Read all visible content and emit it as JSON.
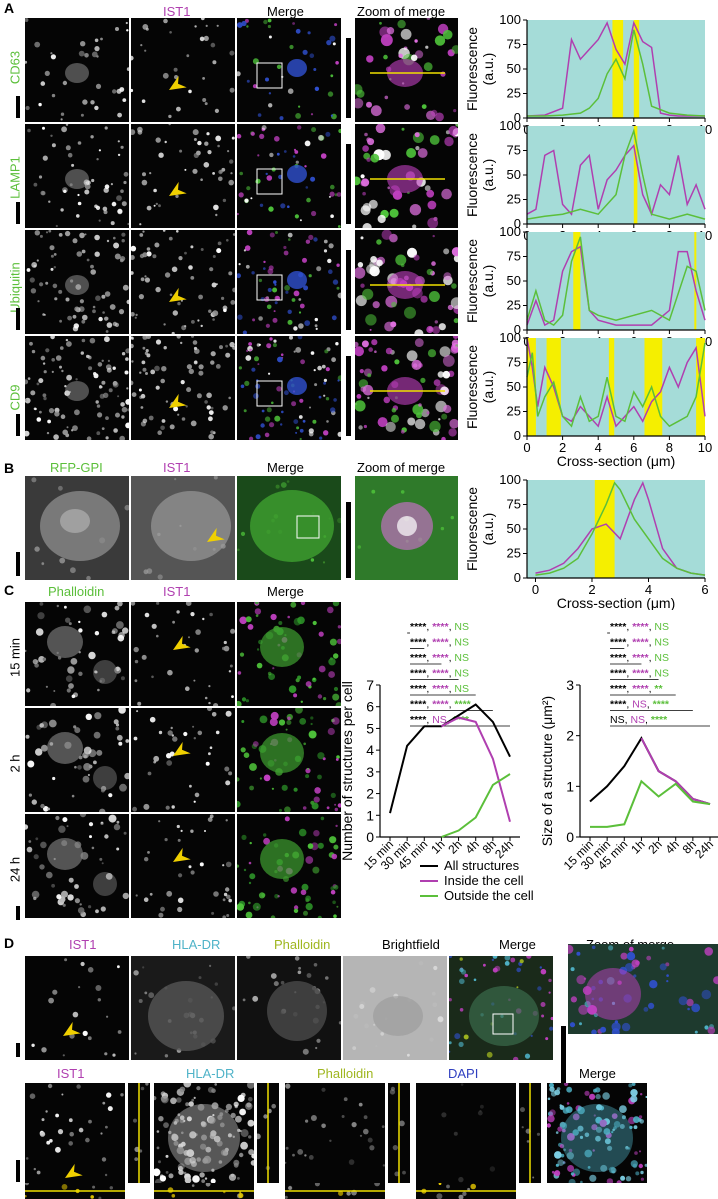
{
  "panels": {
    "A": {
      "letter": "A",
      "col_headers": [
        "IST1",
        "Merge",
        "Zoom of merge"
      ],
      "rows": [
        "CD63",
        "LAMP1",
        "Ubiquitin",
        "CD9"
      ]
    },
    "B": {
      "letter": "B",
      "col_headers": [
        "RFP-GPI",
        "IST1",
        "Merge",
        "Zoom of merge"
      ]
    },
    "C": {
      "letter": "C",
      "col_headers": [
        "Phalloidin",
        "IST1",
        "Merge"
      ],
      "rows": [
        "15 min",
        "2 h",
        "24 h"
      ]
    },
    "D": {
      "letter": "D",
      "top_headers": [
        "IST1",
        "HLA-DR",
        "Phalloidin",
        "Brightfield",
        "Merge",
        "Zoom of merge"
      ],
      "bottom_headers": [
        "IST1",
        "HLA-DR",
        "Phalloidin",
        "DAPI",
        "Merge"
      ]
    }
  },
  "profile_axes": {
    "ylabel_line1": "Fluorescence",
    "ylabel_line2": "(a.u.)",
    "xlabel": "Cross-section (μm)",
    "yticks": [
      "0",
      "25",
      "50",
      "75",
      "100"
    ],
    "xticks_A": [
      "0",
      "2",
      "4",
      "6",
      "8",
      "10"
    ],
    "xticks_B": [
      "0",
      "2",
      "4",
      "6"
    ]
  },
  "chart_data": [
    {
      "type": "line",
      "panel": "A-CD63",
      "xlim": [
        0,
        10
      ],
      "ylim": [
        0,
        100
      ],
      "highlight_regions": [
        [
          4.8,
          5.4
        ],
        [
          6.0,
          6.3
        ]
      ],
      "series": [
        {
          "color": "#b03fb0",
          "x": [
            0,
            1,
            2,
            2.5,
            3,
            3.5,
            4,
            4.5,
            5,
            5.5,
            6,
            6.5,
            7,
            7.5,
            8,
            8.5,
            9,
            9.5,
            10
          ],
          "values": [
            2,
            3,
            10,
            80,
            60,
            70,
            80,
            97,
            70,
            55,
            97,
            78,
            72,
            5,
            3,
            2,
            2,
            2,
            2
          ]
        },
        {
          "color": "#5bbf3a",
          "x": [
            0,
            1,
            2,
            3,
            3.5,
            4,
            4.5,
            5,
            5.5,
            6,
            6.5,
            7,
            8,
            9,
            10
          ],
          "values": [
            2,
            2,
            3,
            5,
            10,
            20,
            45,
            60,
            40,
            90,
            55,
            12,
            5,
            3,
            2
          ]
        }
      ]
    },
    {
      "type": "line",
      "panel": "A-LAMP1",
      "xlim": [
        0,
        10
      ],
      "ylim": [
        0,
        100
      ],
      "highlight_regions": [
        [
          6.0,
          6.2
        ]
      ],
      "series": [
        {
          "color": "#b03fb0",
          "x": [
            0,
            0.5,
            1,
            1.5,
            2,
            2.5,
            3,
            3.5,
            4,
            4.5,
            5,
            5.5,
            6,
            6.5,
            7,
            7.5,
            8,
            8.5,
            9,
            9.5,
            10
          ],
          "values": [
            10,
            15,
            70,
            75,
            20,
            10,
            60,
            70,
            15,
            45,
            55,
            70,
            80,
            30,
            10,
            40,
            30,
            70,
            20,
            40,
            15
          ]
        },
        {
          "color": "#5bbf3a",
          "x": [
            0,
            1,
            2,
            3,
            4,
            5,
            5.5,
            6,
            6.5,
            7,
            8,
            9,
            10
          ],
          "values": [
            5,
            8,
            10,
            15,
            10,
            30,
            70,
            95,
            50,
            10,
            5,
            10,
            5
          ]
        }
      ]
    },
    {
      "type": "line",
      "panel": "A-Ubiquitin",
      "xlim": [
        0,
        10
      ],
      "ylim": [
        0,
        100
      ],
      "highlight_regions": [
        [
          2.6,
          3.0
        ],
        [
          9.4,
          9.5
        ]
      ],
      "series": [
        {
          "color": "#b03fb0",
          "x": [
            0,
            0.5,
            1,
            1.5,
            2,
            2.5,
            3,
            3.5,
            4,
            5,
            6,
            7,
            8,
            8.5,
            9,
            9.5,
            10
          ],
          "values": [
            5,
            30,
            5,
            10,
            60,
            80,
            85,
            20,
            10,
            5,
            5,
            5,
            20,
            80,
            80,
            40,
            10
          ]
        },
        {
          "color": "#5bbf3a",
          "x": [
            0,
            0.5,
            1,
            1.5,
            2,
            2.5,
            3,
            3.5,
            4,
            5,
            6,
            7,
            8,
            9,
            9.5,
            10
          ],
          "values": [
            10,
            40,
            10,
            5,
            15,
            70,
            95,
            20,
            15,
            10,
            15,
            20,
            10,
            65,
            60,
            20
          ]
        }
      ]
    },
    {
      "type": "line",
      "panel": "A-CD9",
      "xlim": [
        0,
        10
      ],
      "ylim": [
        0,
        100
      ],
      "highlight_regions": [
        [
          0,
          0.5
        ],
        [
          1.1,
          1.9
        ],
        [
          4.6,
          4.9
        ],
        [
          6.6,
          7.6
        ],
        [
          9.5,
          10
        ]
      ],
      "series": [
        {
          "color": "#b03fb0",
          "x": [
            0,
            0.3,
            0.6,
            1,
            1.5,
            2,
            2.5,
            3,
            3.5,
            4,
            4.5,
            5,
            5.5,
            6,
            6.5,
            7,
            7.5,
            8,
            8.5,
            9,
            9.5,
            10
          ],
          "values": [
            100,
            70,
            30,
            70,
            50,
            20,
            15,
            30,
            20,
            10,
            40,
            10,
            20,
            30,
            15,
            35,
            45,
            70,
            50,
            75,
            90,
            20
          ]
        },
        {
          "color": "#5bbf3a",
          "x": [
            0,
            0.3,
            0.6,
            1,
            1.5,
            2,
            2.5,
            3,
            3.5,
            4,
            4.5,
            5,
            5.5,
            6,
            6.5,
            7,
            7.5,
            8,
            8.5,
            9,
            9.5,
            10
          ],
          "values": [
            60,
            85,
            20,
            40,
            55,
            20,
            10,
            40,
            15,
            20,
            60,
            20,
            15,
            45,
            30,
            50,
            20,
            10,
            15,
            20,
            40,
            95
          ]
        }
      ]
    },
    {
      "type": "line",
      "panel": "B",
      "xlim": [
        -0.3,
        6
      ],
      "ylim": [
        0,
        100
      ],
      "xlabel": "Cross-section (μm)",
      "highlight_regions": [
        [
          2.1,
          2.8
        ]
      ],
      "series": [
        {
          "color": "#b03fb0",
          "x": [
            0,
            0.5,
            1,
            1.5,
            2,
            2.5,
            3,
            3.5,
            3.8,
            4,
            4.5,
            5,
            5.5,
            6
          ],
          "values": [
            5,
            8,
            15,
            30,
            50,
            55,
            40,
            80,
            97,
            80,
            30,
            10,
            5,
            3
          ]
        },
        {
          "color": "#5bbf3a",
          "x": [
            0,
            0.5,
            1,
            1.5,
            2,
            2.5,
            2.8,
            3,
            3.5,
            4,
            4.5,
            5,
            5.5,
            6
          ],
          "values": [
            3,
            5,
            10,
            20,
            45,
            75,
            97,
            90,
            60,
            40,
            20,
            10,
            5,
            3
          ]
        }
      ]
    },
    {
      "type": "line",
      "panel": "C-number",
      "ylabel": "Number of structures per cell",
      "categories": [
        "15 min",
        "30 min",
        "45 min",
        "1h",
        "2h",
        "4h",
        "8h",
        "24h"
      ],
      "ylim": [
        0,
        7
      ],
      "yticks": [
        "0",
        "1",
        "2",
        "3",
        "4",
        "5",
        "6",
        "7"
      ],
      "significance": [
        [
          "****",
          "****",
          "NS"
        ],
        [
          "****",
          "****",
          "NS"
        ],
        [
          "****",
          "****",
          "NS"
        ],
        [
          "****",
          "****",
          "NS"
        ],
        [
          "****",
          "****",
          "NS"
        ],
        [
          "****",
          "****",
          "****"
        ],
        [
          "****",
          "NS",
          "****"
        ]
      ],
      "series": [
        {
          "color": "#000000",
          "values": [
            1.1,
            4.2,
            5.1,
            5.1,
            5.6,
            6.1,
            5.3,
            3.7
          ]
        },
        {
          "color": "#b03fb0",
          "values": [
            null,
            null,
            null,
            5.1,
            5.5,
            5.3,
            3.6,
            0.7
          ]
        },
        {
          "color": "#5bbf3a",
          "values": [
            null,
            null,
            null,
            0.0,
            0.3,
            0.9,
            2.4,
            2.9
          ]
        }
      ]
    },
    {
      "type": "line",
      "panel": "C-size",
      "ylabel": "Size of a structure (μm²)",
      "categories": [
        "15 min",
        "30 min",
        "45 min",
        "1h",
        "2h",
        "4h",
        "8h",
        "24h"
      ],
      "ylim": [
        0,
        3
      ],
      "yticks": [
        "0",
        "1",
        "2",
        "3"
      ],
      "significance": [
        [
          "****",
          "****",
          "NS"
        ],
        [
          "****",
          "****",
          "NS"
        ],
        [
          "****",
          "****",
          "NS"
        ],
        [
          "****",
          "****",
          "NS"
        ],
        [
          "****",
          "****",
          "**"
        ],
        [
          "****",
          "NS",
          "****"
        ],
        [
          "NS",
          "NS",
          "****"
        ]
      ],
      "series": [
        {
          "color": "#000000",
          "values": [
            0.7,
            1.0,
            1.4,
            1.95,
            1.3,
            1.1,
            0.75,
            0.65
          ]
        },
        {
          "color": "#b03fb0",
          "values": [
            null,
            null,
            null,
            1.95,
            1.3,
            1.1,
            0.75,
            0.65
          ]
        },
        {
          "color": "#5bbf3a",
          "values": [
            0.2,
            0.2,
            0.25,
            1.1,
            0.8,
            1.05,
            0.7,
            0.65
          ]
        }
      ]
    }
  ],
  "legend": {
    "items": [
      {
        "label": "All structures",
        "color": "#000000"
      },
      {
        "label": "Inside the cell",
        "color": "#b03fb0"
      },
      {
        "label": "Outside the cell",
        "color": "#5bbf3a"
      }
    ]
  }
}
